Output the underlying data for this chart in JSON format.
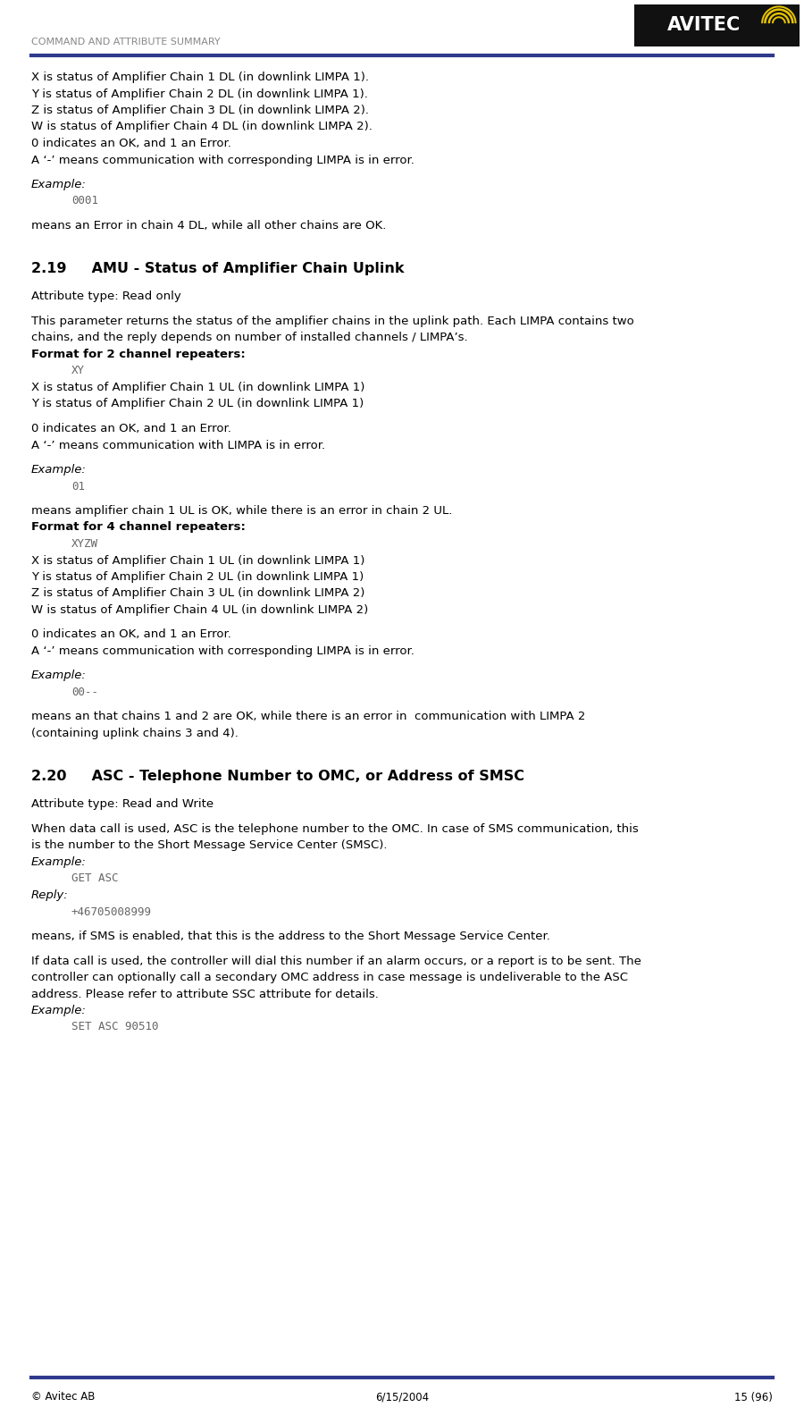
{
  "page_width": 9.0,
  "page_height": 15.93,
  "dpi": 100,
  "bg_color": "#ffffff",
  "header_line_color": "#2e3a8c",
  "header_text": "COMMAND AND ATTRIBUTE SUMMARY",
  "header_text_color": "#888888",
  "footer_left": "© Avitec AB",
  "footer_center": "6/15/2004",
  "footer_right": "15 (96)",
  "logo_bg": "#111111",
  "logo_text_color": "#ffffff",
  "logo_yellow": "#e8c400",
  "body_lines": [
    {
      "type": "normal",
      "text": "X is status of Amplifier Chain 1 DL (in downlink LIMPA 1)."
    },
    {
      "type": "normal",
      "text": "Y is status of Amplifier Chain 2 DL (in downlink LIMPA 1)."
    },
    {
      "type": "normal",
      "text": "Z is status of Amplifier Chain 3 DL (in downlink LIMPA 2)."
    },
    {
      "type": "normal",
      "text": "W is status of Amplifier Chain 4 DL (in downlink LIMPA 2)."
    },
    {
      "type": "normal",
      "text": "0 indicates an OK, and 1 an Error."
    },
    {
      "type": "normal",
      "text": "A ‘-’ means communication with corresponding LIMPA is in error."
    },
    {
      "type": "blank_small",
      "text": ""
    },
    {
      "type": "italic",
      "text": "Example:"
    },
    {
      "type": "code",
      "text": "0001"
    },
    {
      "type": "blank_small",
      "text": ""
    },
    {
      "type": "normal",
      "text": "means an Error in chain 4 DL, while all other chains are OK."
    },
    {
      "type": "blank_large",
      "text": ""
    },
    {
      "type": "blank_large",
      "text": ""
    },
    {
      "type": "section",
      "text": "2.19     AMU - Status of Amplifier Chain Uplink"
    },
    {
      "type": "blank_small",
      "text": ""
    },
    {
      "type": "normal",
      "text": "Attribute type: Read only"
    },
    {
      "type": "blank_small",
      "text": ""
    },
    {
      "type": "normal",
      "text": "This parameter returns the status of the amplifier chains in the uplink path. Each LIMPA contains two"
    },
    {
      "type": "normal",
      "text": "chains, and the reply depends on number of installed channels / LIMPA’s."
    },
    {
      "type": "bold",
      "text": "Format for 2 channel repeaters:"
    },
    {
      "type": "code",
      "text": "XY"
    },
    {
      "type": "normal",
      "text": "X is status of Amplifier Chain 1 UL (in downlink LIMPA 1)"
    },
    {
      "type": "normal",
      "text": "Y is status of Amplifier Chain 2 UL (in downlink LIMPA 1)"
    },
    {
      "type": "blank_small",
      "text": ""
    },
    {
      "type": "normal",
      "text": "0 indicates an OK, and 1 an Error."
    },
    {
      "type": "normal",
      "text": "A ‘-’ means communication with LIMPA is in error."
    },
    {
      "type": "blank_small",
      "text": ""
    },
    {
      "type": "italic",
      "text": "Example:"
    },
    {
      "type": "code",
      "text": "01"
    },
    {
      "type": "blank_small",
      "text": ""
    },
    {
      "type": "normal",
      "text": "means amplifier chain 1 UL is OK, while there is an error in chain 2 UL."
    },
    {
      "type": "bold",
      "text": "Format for 4 channel repeaters:"
    },
    {
      "type": "code",
      "text": "XYZW"
    },
    {
      "type": "normal",
      "text": "X is status of Amplifier Chain 1 UL (in downlink LIMPA 1)"
    },
    {
      "type": "normal",
      "text": "Y is status of Amplifier Chain 2 UL (in downlink LIMPA 1)"
    },
    {
      "type": "normal",
      "text": "Z is status of Amplifier Chain 3 UL (in downlink LIMPA 2)"
    },
    {
      "type": "normal",
      "text": "W is status of Amplifier Chain 4 UL (in downlink LIMPA 2)"
    },
    {
      "type": "blank_small",
      "text": ""
    },
    {
      "type": "normal",
      "text": "0 indicates an OK, and 1 an Error."
    },
    {
      "type": "normal",
      "text": "A ‘-’ means communication with corresponding LIMPA is in error."
    },
    {
      "type": "blank_small",
      "text": ""
    },
    {
      "type": "italic",
      "text": "Example:"
    },
    {
      "type": "code",
      "text": "00--"
    },
    {
      "type": "blank_small",
      "text": ""
    },
    {
      "type": "normal",
      "text": "means an that chains 1 and 2 are OK, while there is an error in  communication with LIMPA 2"
    },
    {
      "type": "normal",
      "text": "(containing uplink chains 3 and 4)."
    },
    {
      "type": "blank_large",
      "text": ""
    },
    {
      "type": "blank_large",
      "text": ""
    },
    {
      "type": "section",
      "text": "2.20     ASC - Telephone Number to OMC, or Address of SMSC"
    },
    {
      "type": "blank_small",
      "text": ""
    },
    {
      "type": "normal",
      "text": "Attribute type: Read and Write"
    },
    {
      "type": "blank_small",
      "text": ""
    },
    {
      "type": "normal",
      "text": "When data call is used, ASC is the telephone number to the OMC. In case of SMS communication, this"
    },
    {
      "type": "normal",
      "text": "is the number to the Short Message Service Center (SMSC)."
    },
    {
      "type": "italic",
      "text": "Example:"
    },
    {
      "type": "code",
      "text": "GET ASC"
    },
    {
      "type": "italic",
      "text": "Reply:"
    },
    {
      "type": "code",
      "text": "+46705008999"
    },
    {
      "type": "blank_small",
      "text": ""
    },
    {
      "type": "normal",
      "text": "means, if SMS is enabled, that this is the address to the Short Message Service Center."
    },
    {
      "type": "blank_small",
      "text": ""
    },
    {
      "type": "normal",
      "text": "If data call is used, the controller will dial this number if an alarm occurs, or a report is to be sent. The"
    },
    {
      "type": "normal",
      "text": "controller can optionally call a secondary OMC address in case message is undeliverable to the ASC"
    },
    {
      "type": "normal",
      "text": "address. Please refer to attribute SSC attribute for details."
    },
    {
      "type": "italic",
      "text": "Example:"
    },
    {
      "type": "code",
      "text": "SET ASC 90510"
    }
  ]
}
